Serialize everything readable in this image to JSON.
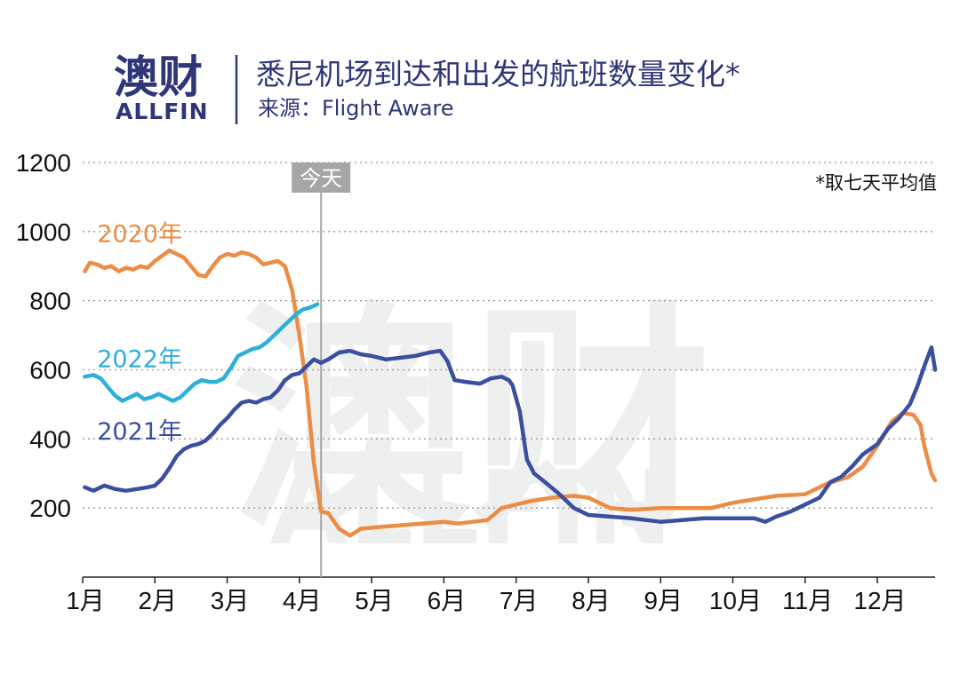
{
  "header": {
    "logo_cn": "澳财",
    "logo_en": "ALLFIN",
    "title": "悉尼机场到达和出发的航班数量变化*",
    "subtitle": "来源：Flight Aware"
  },
  "watermark": {
    "cn": "澳财",
    "en": "ALLFIN"
  },
  "colors": {
    "series_2020": "#ec8c45",
    "series_2021": "#3b4fa0",
    "series_2022": "#2cb0d8",
    "brand": "#2e3677",
    "today_marker": "#a6a6a6"
  },
  "chart_data": {
    "type": "line",
    "title": "悉尼机场到达和出发的航班数量变化*",
    "note": "*取七天平均值",
    "today_marker": {
      "label": "今天",
      "month": 4.3
    },
    "xlabel": "",
    "ylabel": "",
    "ylim": [
      0,
      1200
    ],
    "yticks": [
      200,
      400,
      600,
      800,
      1000,
      1200
    ],
    "xlim": [
      1,
      12.8
    ],
    "month_ticks": [
      {
        "m": 1,
        "label": "1月"
      },
      {
        "m": 2,
        "label": "2月"
      },
      {
        "m": 3,
        "label": "3月"
      },
      {
        "m": 4,
        "label": "4月"
      },
      {
        "m": 5,
        "label": "5月"
      },
      {
        "m": 6,
        "label": "6月"
      },
      {
        "m": 7,
        "label": "7月"
      },
      {
        "m": 8,
        "label": "8月"
      },
      {
        "m": 9,
        "label": "9月"
      },
      {
        "m": 10,
        "label": "10月"
      },
      {
        "m": 11,
        "label": "11月"
      },
      {
        "m": 12,
        "label": "12月"
      }
    ],
    "grid": true,
    "series": [
      {
        "name": "2020年",
        "color": "#ec8c45",
        "label_pos": [
          1.2,
          970
        ],
        "points": [
          [
            1.03,
            885
          ],
          [
            1.1,
            910
          ],
          [
            1.2,
            905
          ],
          [
            1.3,
            895
          ],
          [
            1.4,
            900
          ],
          [
            1.5,
            885
          ],
          [
            1.6,
            895
          ],
          [
            1.7,
            890
          ],
          [
            1.8,
            900
          ],
          [
            1.9,
            895
          ],
          [
            2.0,
            915
          ],
          [
            2.1,
            930
          ],
          [
            2.2,
            945
          ],
          [
            2.3,
            935
          ],
          [
            2.4,
            925
          ],
          [
            2.5,
            900
          ],
          [
            2.6,
            875
          ],
          [
            2.7,
            870
          ],
          [
            2.8,
            900
          ],
          [
            2.9,
            925
          ],
          [
            3.0,
            935
          ],
          [
            3.1,
            930
          ],
          [
            3.2,
            940
          ],
          [
            3.3,
            935
          ],
          [
            3.4,
            925
          ],
          [
            3.5,
            905
          ],
          [
            3.6,
            910
          ],
          [
            3.7,
            915
          ],
          [
            3.8,
            900
          ],
          [
            3.9,
            830
          ],
          [
            4.0,
            700
          ],
          [
            4.1,
            550
          ],
          [
            4.2,
            330
          ],
          [
            4.3,
            190
          ],
          [
            4.4,
            185
          ],
          [
            4.55,
            140
          ],
          [
            4.7,
            120
          ],
          [
            4.85,
            140
          ],
          [
            5.1,
            145
          ],
          [
            5.4,
            150
          ],
          [
            5.7,
            155
          ],
          [
            6.0,
            160
          ],
          [
            6.2,
            155
          ],
          [
            6.4,
            160
          ],
          [
            6.6,
            165
          ],
          [
            6.8,
            200
          ],
          [
            7.0,
            210
          ],
          [
            7.2,
            220
          ],
          [
            7.5,
            230
          ],
          [
            7.8,
            235
          ],
          [
            8.0,
            230
          ],
          [
            8.3,
            200
          ],
          [
            8.6,
            195
          ],
          [
            9.0,
            200
          ],
          [
            9.3,
            200
          ],
          [
            9.7,
            200
          ],
          [
            10.0,
            215
          ],
          [
            10.3,
            225
          ],
          [
            10.6,
            235
          ],
          [
            11.0,
            240
          ],
          [
            11.3,
            270
          ],
          [
            11.6,
            290
          ],
          [
            11.8,
            320
          ],
          [
            12.0,
            380
          ],
          [
            12.2,
            450
          ],
          [
            12.35,
            475
          ],
          [
            12.5,
            470
          ],
          [
            12.6,
            440
          ],
          [
            12.65,
            380
          ],
          [
            12.75,
            300
          ],
          [
            12.8,
            280
          ]
        ]
      },
      {
        "name": "2022年",
        "color": "#2cb0d8",
        "label_pos": [
          1.2,
          608
        ],
        "points": [
          [
            1.03,
            580
          ],
          [
            1.15,
            585
          ],
          [
            1.25,
            575
          ],
          [
            1.35,
            550
          ],
          [
            1.45,
            525
          ],
          [
            1.55,
            510
          ],
          [
            1.65,
            520
          ],
          [
            1.75,
            530
          ],
          [
            1.85,
            515
          ],
          [
            1.95,
            520
          ],
          [
            2.05,
            530
          ],
          [
            2.15,
            520
          ],
          [
            2.25,
            510
          ],
          [
            2.35,
            520
          ],
          [
            2.45,
            540
          ],
          [
            2.55,
            560
          ],
          [
            2.65,
            570
          ],
          [
            2.75,
            565
          ],
          [
            2.85,
            565
          ],
          [
            2.95,
            575
          ],
          [
            3.05,
            605
          ],
          [
            3.15,
            640
          ],
          [
            3.25,
            650
          ],
          [
            3.35,
            660
          ],
          [
            3.45,
            665
          ],
          [
            3.55,
            680
          ],
          [
            3.65,
            700
          ],
          [
            3.75,
            720
          ],
          [
            3.85,
            740
          ],
          [
            3.95,
            760
          ],
          [
            4.05,
            775
          ],
          [
            4.15,
            780
          ],
          [
            4.25,
            790
          ]
        ]
      },
      {
        "name": "2021年",
        "color": "#3b4fa0",
        "label_pos": [
          1.2,
          398
        ],
        "points": [
          [
            1.03,
            260
          ],
          [
            1.15,
            250
          ],
          [
            1.3,
            265
          ],
          [
            1.45,
            255
          ],
          [
            1.6,
            250
          ],
          [
            1.75,
            255
          ],
          [
            1.9,
            260
          ],
          [
            2.0,
            265
          ],
          [
            2.1,
            285
          ],
          [
            2.2,
            315
          ],
          [
            2.3,
            350
          ],
          [
            2.4,
            370
          ],
          [
            2.5,
            380
          ],
          [
            2.6,
            385
          ],
          [
            2.7,
            395
          ],
          [
            2.8,
            415
          ],
          [
            2.9,
            440
          ],
          [
            3.0,
            460
          ],
          [
            3.1,
            485
          ],
          [
            3.2,
            505
          ],
          [
            3.3,
            510
          ],
          [
            3.4,
            505
          ],
          [
            3.5,
            515
          ],
          [
            3.6,
            520
          ],
          [
            3.7,
            540
          ],
          [
            3.8,
            570
          ],
          [
            3.9,
            585
          ],
          [
            4.0,
            590
          ],
          [
            4.1,
            610
          ],
          [
            4.2,
            630
          ],
          [
            4.3,
            620
          ],
          [
            4.4,
            630
          ],
          [
            4.55,
            650
          ],
          [
            4.7,
            655
          ],
          [
            4.85,
            645
          ],
          [
            5.0,
            640
          ],
          [
            5.2,
            630
          ],
          [
            5.4,
            635
          ],
          [
            5.6,
            640
          ],
          [
            5.8,
            650
          ],
          [
            5.95,
            655
          ],
          [
            6.05,
            625
          ],
          [
            6.15,
            570
          ],
          [
            6.3,
            565
          ],
          [
            6.5,
            560
          ],
          [
            6.65,
            575
          ],
          [
            6.8,
            580
          ],
          [
            6.9,
            570
          ],
          [
            6.95,
            555
          ],
          [
            7.05,
            480
          ],
          [
            7.15,
            340
          ],
          [
            7.25,
            300
          ],
          [
            7.4,
            275
          ],
          [
            7.6,
            240
          ],
          [
            7.8,
            200
          ],
          [
            8.0,
            180
          ],
          [
            8.3,
            175
          ],
          [
            8.6,
            170
          ],
          [
            9.0,
            160
          ],
          [
            9.3,
            165
          ],
          [
            9.6,
            170
          ],
          [
            10.0,
            170
          ],
          [
            10.3,
            170
          ],
          [
            10.45,
            160
          ],
          [
            10.6,
            175
          ],
          [
            10.8,
            190
          ],
          [
            11.0,
            210
          ],
          [
            11.2,
            230
          ],
          [
            11.35,
            275
          ],
          [
            11.5,
            290
          ],
          [
            11.65,
            320
          ],
          [
            11.8,
            355
          ],
          [
            12.0,
            385
          ],
          [
            12.15,
            430
          ],
          [
            12.3,
            460
          ],
          [
            12.45,
            500
          ],
          [
            12.55,
            550
          ],
          [
            12.65,
            610
          ],
          [
            12.75,
            665
          ],
          [
            12.8,
            600
          ]
        ]
      }
    ]
  }
}
